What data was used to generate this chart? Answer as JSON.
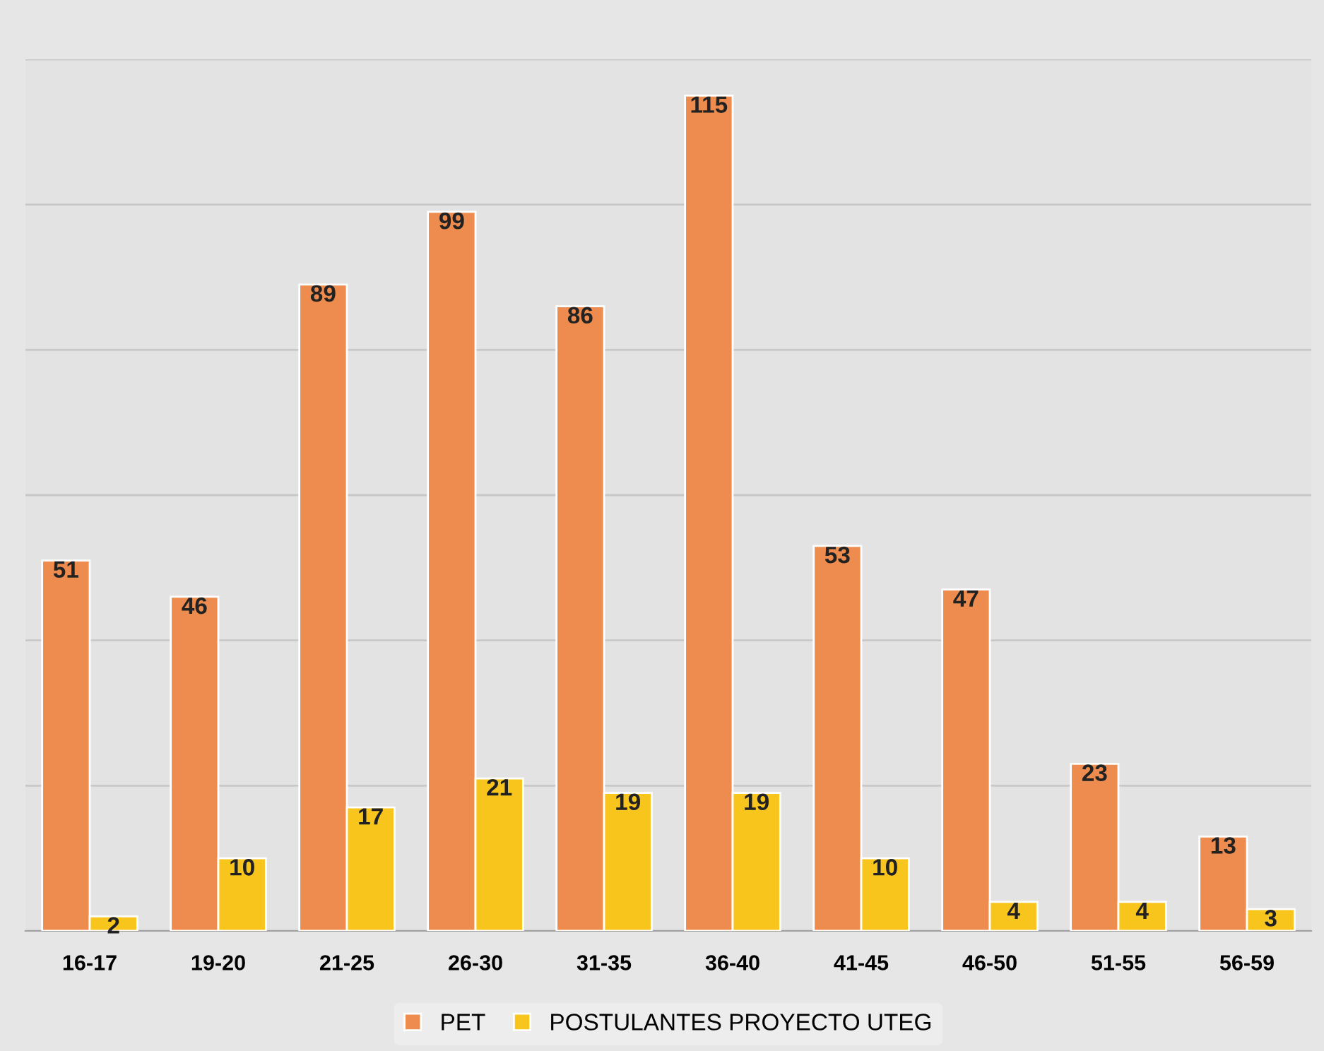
{
  "chart_data": {
    "type": "bar",
    "categories": [
      "16-17",
      "19-20",
      "21-25",
      "26-30",
      "31-35",
      "36-40",
      "41-45",
      "46-50",
      "51-55",
      "56-59"
    ],
    "series": [
      {
        "name": "PET",
        "color": "#ed8c4e",
        "values": [
          51,
          46,
          89,
          99,
          86,
          115,
          53,
          47,
          23,
          13
        ]
      },
      {
        "name": "POSTULANTES PROYECTO UTEG",
        "color": "#f8c51c",
        "values": [
          2,
          10,
          17,
          21,
          19,
          19,
          10,
          4,
          4,
          3
        ]
      }
    ],
    "ylim": [
      0,
      120
    ],
    "yticks": [
      {
        "value": 0,
        "label": null
      },
      {
        "value": 20,
        "label": null
      },
      {
        "value": 40,
        "label": null
      },
      {
        "value": 60,
        "label": null
      },
      {
        "value": 80,
        "label": null
      },
      {
        "value": 100,
        "label": null
      },
      {
        "value": 120,
        "label": null
      }
    ],
    "tick_labels": "x",
    "grid": "y",
    "legend": "bottom",
    "data_labels": true
  }
}
